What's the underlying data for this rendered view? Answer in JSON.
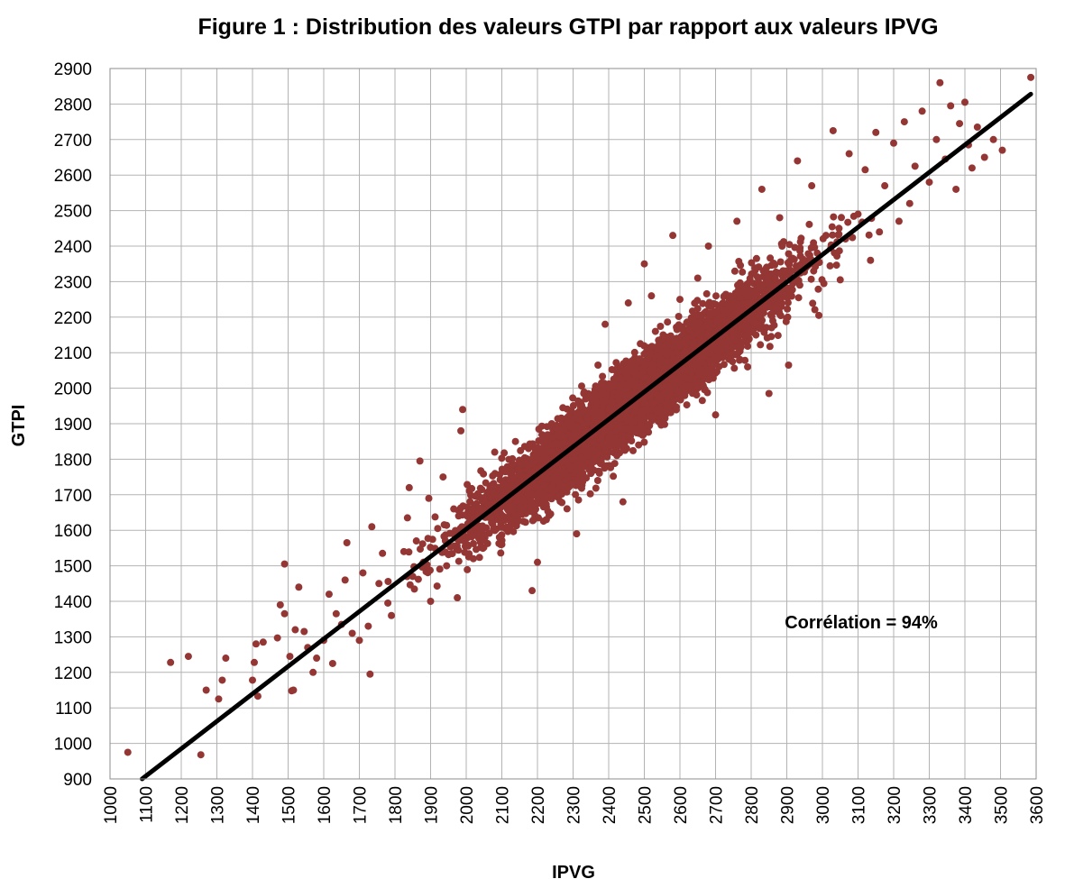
{
  "chart_data": {
    "type": "scatter",
    "title": "Figure 1 : Distribution des valeurs GTPI par rapport aux valeurs IPVG",
    "xlabel": "IPVG",
    "ylabel": "GTPI",
    "xlim": [
      1000,
      3600
    ],
    "ylim": [
      900,
      2900
    ],
    "x_ticks": [
      1000,
      1100,
      1200,
      1300,
      1400,
      1500,
      1600,
      1700,
      1800,
      1900,
      2000,
      2100,
      2200,
      2300,
      2400,
      2500,
      2600,
      2700,
      2800,
      2900,
      3000,
      3100,
      3200,
      3300,
      3400,
      3500,
      3600
    ],
    "y_ticks": [
      900,
      1000,
      1100,
      1200,
      1300,
      1400,
      1500,
      1600,
      1700,
      1800,
      1900,
      2000,
      2100,
      2200,
      2300,
      2400,
      2500,
      2600,
      2700,
      2800,
      2900
    ],
    "grid": true,
    "legend": "none",
    "annotation": "Corrélation = 94%",
    "colors": {
      "points": "#943634",
      "trendline": "#000000",
      "grid": "#b3b3b3"
    },
    "trendline": {
      "x": [
        1090,
        3585
      ],
      "y": [
        900,
        2828
      ]
    },
    "series": [
      {
        "points": [
          [
            1050,
            975
          ],
          [
            1170,
            1228
          ],
          [
            1220,
            1245
          ],
          [
            1255,
            968
          ],
          [
            1270,
            1150
          ],
          [
            1305,
            1125
          ],
          [
            1315,
            1178
          ],
          [
            1325,
            1240
          ],
          [
            1400,
            1178
          ],
          [
            1405,
            1228
          ],
          [
            1410,
            1280
          ],
          [
            1415,
            1133
          ],
          [
            1430,
            1285
          ],
          [
            1470,
            1297
          ],
          [
            1478,
            1390
          ],
          [
            1490,
            1505
          ],
          [
            1490,
            1365
          ],
          [
            1510,
            1148
          ],
          [
            1505,
            1245
          ],
          [
            1515,
            1150
          ],
          [
            1520,
            1320
          ],
          [
            1530,
            1440
          ],
          [
            1545,
            1315
          ],
          [
            1555,
            1270
          ],
          [
            1570,
            1200
          ],
          [
            1580,
            1240
          ],
          [
            1600,
            1290
          ],
          [
            1615,
            1420
          ],
          [
            1625,
            1225
          ],
          [
            1635,
            1365
          ],
          [
            1650,
            1335
          ],
          [
            1660,
            1460
          ],
          [
            1665,
            1565
          ],
          [
            1680,
            1310
          ],
          [
            1700,
            1290
          ],
          [
            1710,
            1480
          ],
          [
            1725,
            1330
          ],
          [
            1730,
            1195
          ],
          [
            1735,
            1610
          ],
          [
            1755,
            1450
          ],
          [
            1765,
            1535
          ],
          [
            1780,
            1395
          ],
          [
            1790,
            1360
          ],
          [
            1825,
            1540
          ],
          [
            1835,
            1635
          ],
          [
            1840,
            1720
          ],
          [
            1850,
            1470
          ],
          [
            1860,
            1570
          ],
          [
            1870,
            1795
          ],
          [
            1880,
            1510
          ],
          [
            1895,
            1690
          ],
          [
            1900,
            1400
          ],
          [
            1920,
            1605
          ],
          [
            1935,
            1750
          ],
          [
            1945,
            1500
          ],
          [
            1965,
            1660
          ],
          [
            1975,
            1410
          ],
          [
            1985,
            1880
          ],
          [
            1990,
            1940
          ],
          [
            2020,
            1520
          ],
          [
            2040,
            1610
          ],
          [
            2055,
            1695
          ],
          [
            2080,
            1820
          ],
          [
            2100,
            1560
          ],
          [
            2120,
            1600
          ],
          [
            2150,
            1680
          ],
          [
            2175,
            1830
          ],
          [
            2185,
            1430
          ],
          [
            2200,
            1510
          ],
          [
            2225,
            1630
          ],
          [
            2240,
            1900
          ],
          [
            2260,
            1735
          ],
          [
            2280,
            1820
          ],
          [
            2310,
            1590
          ],
          [
            2330,
            1985
          ],
          [
            2350,
            1760
          ],
          [
            2370,
            2065
          ],
          [
            2390,
            2180
          ],
          [
            2410,
            1850
          ],
          [
            2440,
            1680
          ],
          [
            2455,
            2240
          ],
          [
            2470,
            2010
          ],
          [
            2495,
            1930
          ],
          [
            2500,
            2350
          ],
          [
            2520,
            2260
          ],
          [
            2540,
            2135
          ],
          [
            2560,
            1940
          ],
          [
            2580,
            2430
          ],
          [
            2600,
            2250
          ],
          [
            2625,
            2080
          ],
          [
            2650,
            2310
          ],
          [
            2680,
            2400
          ],
          [
            2700,
            1925
          ],
          [
            2710,
            2170
          ],
          [
            2735,
            2225
          ],
          [
            2760,
            2470
          ],
          [
            2790,
            2060
          ],
          [
            2815,
            2365
          ],
          [
            2830,
            2560
          ],
          [
            2850,
            1985
          ],
          [
            2860,
            2290
          ],
          [
            2880,
            2480
          ],
          [
            2905,
            2065
          ],
          [
            2930,
            2640
          ],
          [
            2950,
            2350
          ],
          [
            2970,
            2570
          ],
          [
            2990,
            2205
          ],
          [
            3010,
            2430
          ],
          [
            3030,
            2725
          ],
          [
            3050,
            2305
          ],
          [
            3075,
            2660
          ],
          [
            3100,
            2490
          ],
          [
            3120,
            2615
          ],
          [
            3135,
            2360
          ],
          [
            3150,
            2720
          ],
          [
            3160,
            2440
          ],
          [
            3175,
            2570
          ],
          [
            3200,
            2690
          ],
          [
            3215,
            2470
          ],
          [
            3230,
            2750
          ],
          [
            3245,
            2520
          ],
          [
            3260,
            2625
          ],
          [
            3280,
            2780
          ],
          [
            3300,
            2580
          ],
          [
            3320,
            2700
          ],
          [
            3330,
            2860
          ],
          [
            3345,
            2645
          ],
          [
            3360,
            2795
          ],
          [
            3375,
            2560
          ],
          [
            3385,
            2745
          ],
          [
            3400,
            2805
          ],
          [
            3410,
            2685
          ],
          [
            3420,
            2620
          ],
          [
            3435,
            2735
          ],
          [
            3455,
            2650
          ],
          [
            3480,
            2700
          ],
          [
            3505,
            2670
          ],
          [
            3585,
            2875
          ]
        ]
      }
    ]
  }
}
